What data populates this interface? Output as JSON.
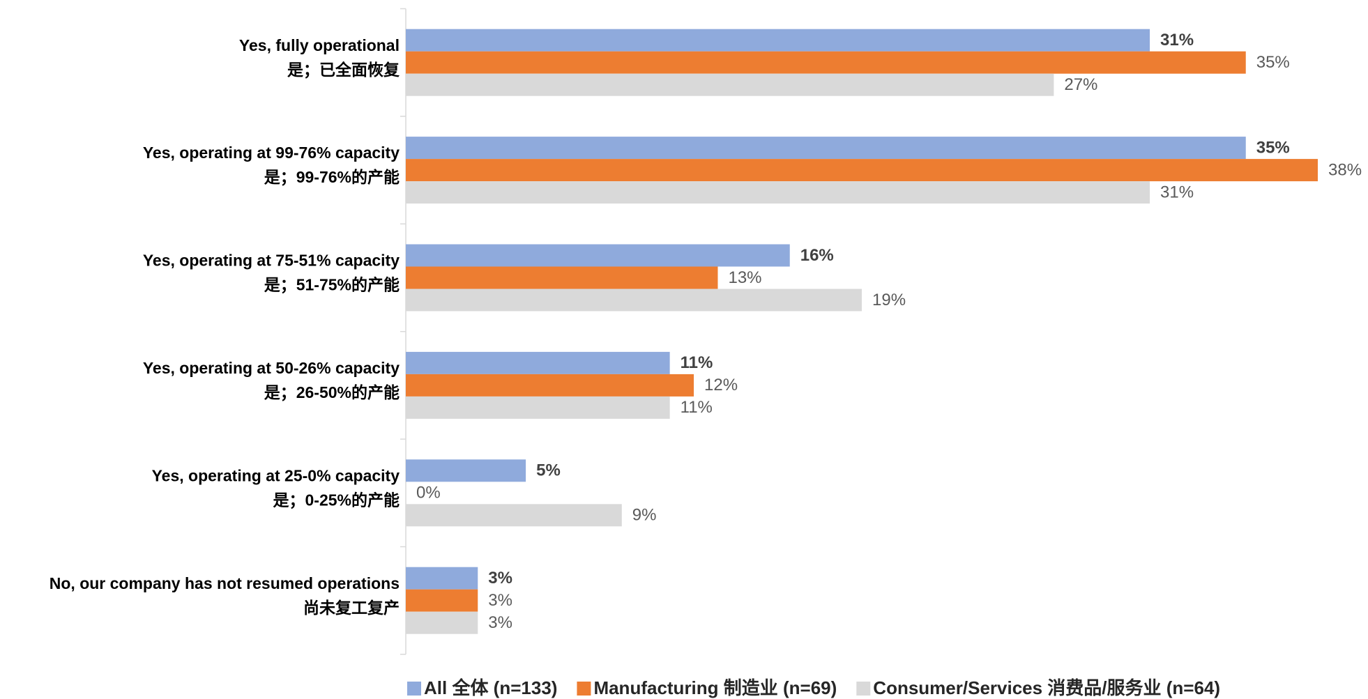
{
  "chart_data": {
    "type": "bar",
    "orientation": "horizontal",
    "categories": [
      [
        "Yes, fully operational",
        "是；已全面恢复"
      ],
      [
        "Yes, operating at 99-76% capacity",
        "是；99-76%的产能"
      ],
      [
        "Yes, operating at 75-51% capacity",
        "是；51-75%的产能"
      ],
      [
        "Yes, operating at 50-26% capacity",
        "是；26-50%的产能"
      ],
      [
        "Yes, operating at 25-0% capacity",
        "是；0-25%的产能"
      ],
      [
        "No, our company has not resumed operations",
        "尚未复工复产"
      ]
    ],
    "series": [
      {
        "name": "All 全体 (n=133)",
        "color": "#8faadc",
        "values": [
          31,
          35,
          16,
          11,
          5,
          3
        ],
        "value_labels": [
          "31%",
          "35%",
          "16%",
          "11%",
          "5%",
          "3%"
        ]
      },
      {
        "name": "Manufacturing 制造业 (n=69)",
        "color": "#ed7d31",
        "values": [
          35,
          38,
          13,
          12,
          0,
          3
        ],
        "value_labels": [
          "35%",
          "38%",
          "13%",
          "12%",
          "0%",
          "3%"
        ]
      },
      {
        "name": "Consumer/Services 消费品/服务业 (n=64)",
        "color": "#d9d9d9",
        "values": [
          27,
          31,
          19,
          11,
          9,
          3
        ],
        "value_labels": [
          "27%",
          "31%",
          "19%",
          "11%",
          "9%",
          "3%"
        ]
      }
    ],
    "legend": "bottom"
  }
}
